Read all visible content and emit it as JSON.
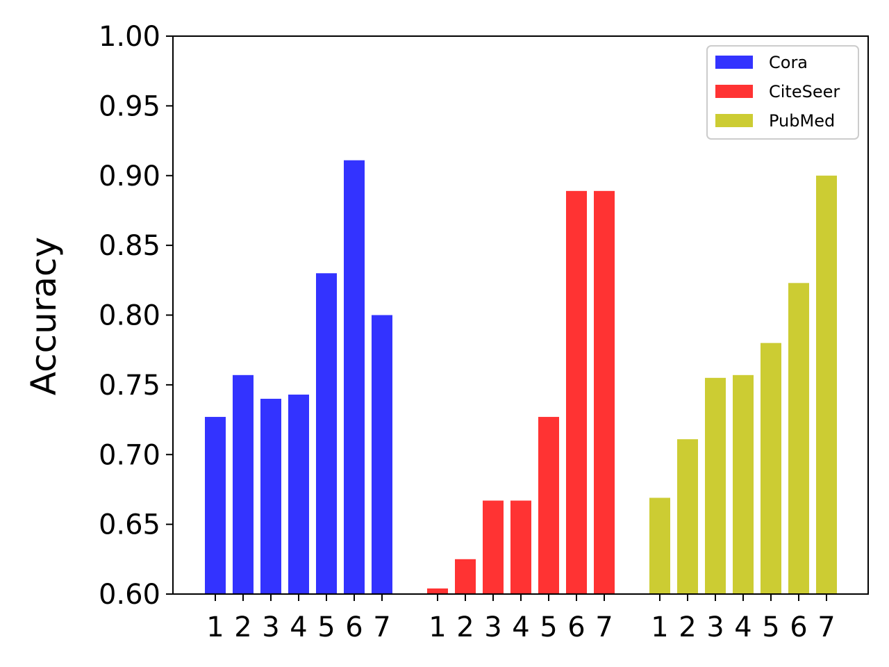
{
  "chart_data": {
    "type": "bar",
    "title": "",
    "xlabel": "",
    "ylabel": "Accuracy",
    "ylim": [
      0.6,
      1.0
    ],
    "yticks": [
      "0.60",
      "0.65",
      "0.70",
      "0.75",
      "0.80",
      "0.85",
      "0.90",
      "0.95",
      "1.00"
    ],
    "categories": [
      "1",
      "2",
      "3",
      "4",
      "5",
      "6",
      "7"
    ],
    "grid": false,
    "legend_position": "top-right",
    "series": [
      {
        "name": "Cora",
        "color": "#3333ff",
        "values": [
          0.727,
          0.757,
          0.74,
          0.743,
          0.83,
          0.911,
          0.8
        ]
      },
      {
        "name": "CiteSeer",
        "color": "#ff3333",
        "values": [
          0.604,
          0.625,
          0.667,
          0.667,
          0.727,
          0.889,
          0.889
        ]
      },
      {
        "name": "PubMed",
        "color": "#cccc33",
        "values": [
          0.669,
          0.711,
          0.755,
          0.757,
          0.78,
          0.823,
          0.9
        ]
      }
    ]
  }
}
